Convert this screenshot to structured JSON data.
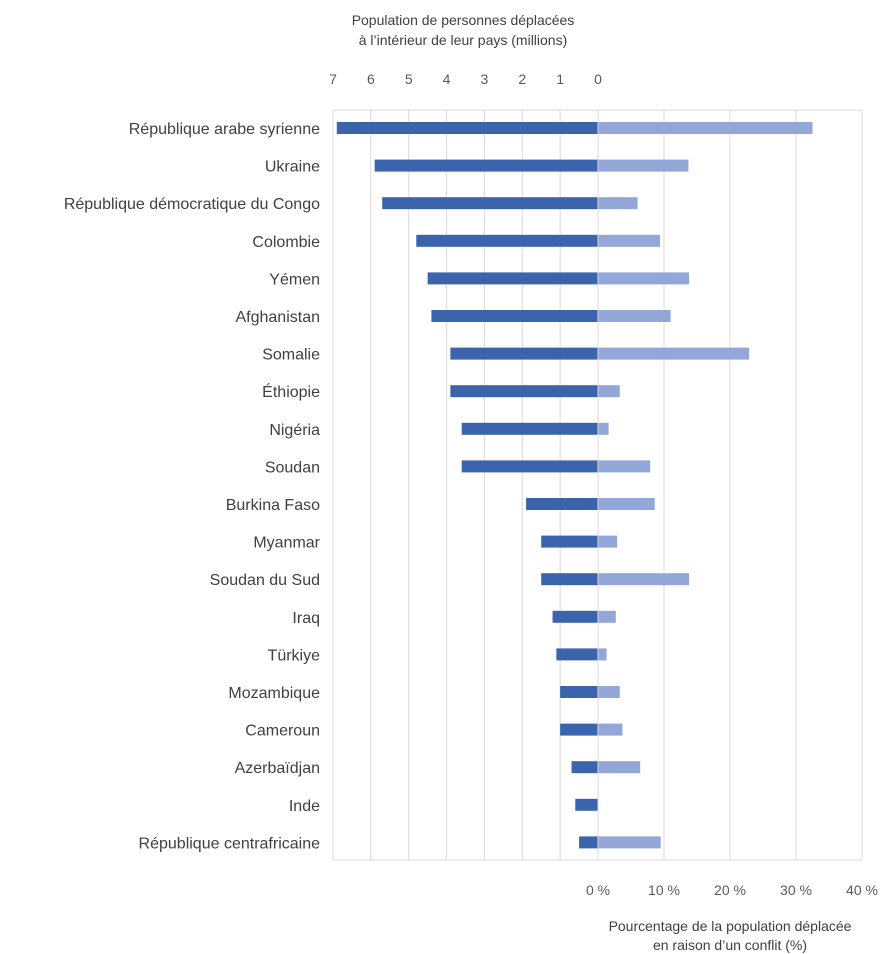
{
  "chart_data": {
    "type": "bar",
    "orientation": "horizontal",
    "layout": "diverging-paired",
    "categories": [
      "République arabe syrienne",
      "Ukraine",
      "République démocratique du Congo",
      "Colombie",
      "Yémen",
      "Afghanistan",
      "Somalie",
      "Éthiopie",
      "Nigéria",
      "Soudan",
      "Burkina Faso",
      "Myanmar",
      "Soudan du Sud",
      "Iraq",
      "Türkiye",
      "Mozambique",
      "Cameroun",
      "Azerbaïdjan",
      "Inde",
      "République centrafricaine"
    ],
    "series": [
      {
        "axis": "top",
        "color": "#3b64ad",
        "values": [
          6.9,
          5.9,
          5.7,
          4.8,
          4.5,
          4.4,
          3.9,
          3.9,
          3.6,
          3.6,
          1.9,
          1.5,
          1.5,
          1.2,
          1.1,
          1.0,
          1.0,
          0.7,
          0.6,
          0.5
        ]
      },
      {
        "axis": "bottom",
        "color": "#93a6d8",
        "values": [
          32.5,
          13.7,
          6.0,
          9.4,
          13.8,
          11.0,
          22.9,
          3.3,
          1.6,
          7.9,
          8.6,
          2.9,
          13.8,
          2.7,
          1.3,
          3.3,
          3.7,
          6.4,
          0,
          9.5
        ]
      }
    ],
    "top_axis": {
      "title_lines": [
        "Population de personnes déplacées",
        "à l’intérieur de leur pays (millions)"
      ],
      "tick_values": [
        7,
        6,
        5,
        4,
        3,
        2,
        1,
        0
      ],
      "tick_labels": [
        "7",
        "6",
        "5",
        "4",
        "3",
        "2",
        "1",
        "0"
      ],
      "range": [
        0,
        7
      ],
      "direction": "reversed"
    },
    "bottom_axis": {
      "title_lines": [
        "Pourcentage de la population déplacée",
        "en raison d’un conflit (%)"
      ],
      "tick_values": [
        0,
        10,
        20,
        30,
        40
      ],
      "tick_labels": [
        "0 %",
        "10 %",
        "20 %",
        "30 %",
        "40 %"
      ],
      "range": [
        0,
        40
      ]
    },
    "grid": true
  }
}
